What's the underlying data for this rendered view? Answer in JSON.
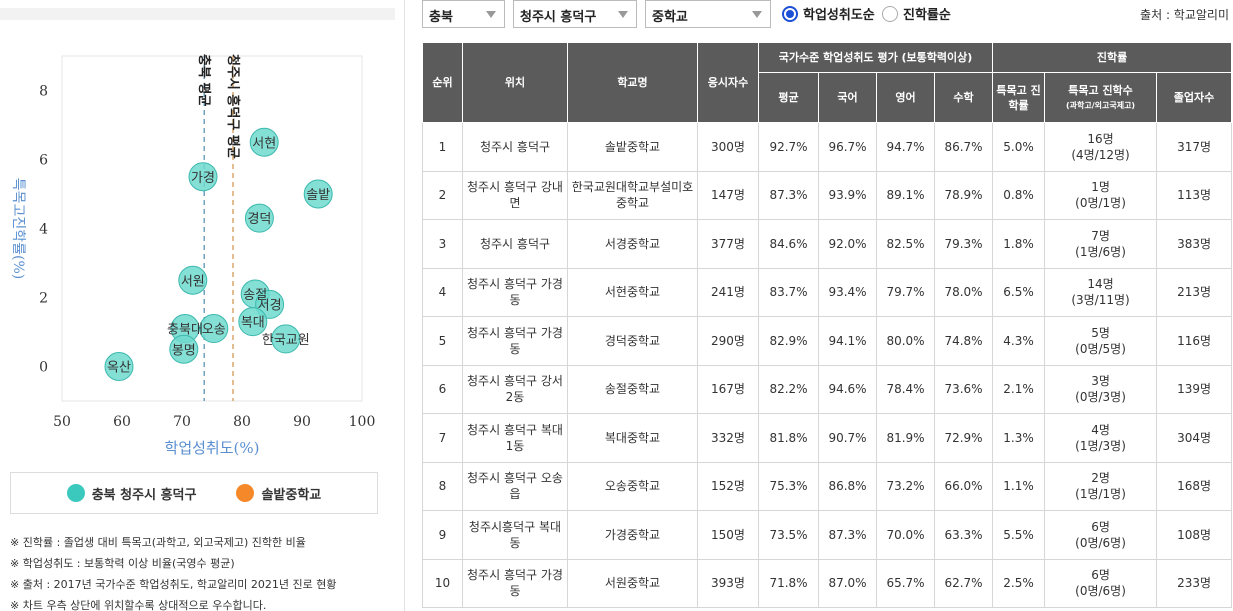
{
  "chart_data": {
    "type": "scatter",
    "xlabel": "학업성취도(%)",
    "ylabel": "특목고진학률(%)",
    "xlim": [
      50,
      100
    ],
    "ylim": [
      -1,
      9
    ],
    "xticks": [
      50,
      60,
      70,
      80,
      90,
      100
    ],
    "yticks": [
      0,
      2,
      4,
      6,
      8
    ],
    "grid": false,
    "legend_position": "bottom",
    "reference_lines": [
      {
        "label": "충북 평균",
        "x": 73.7
      },
      {
        "label": "청주시 흥덕구 평균",
        "x": 78.5
      }
    ],
    "series": [
      {
        "name": "충북 청주시 흥덕구",
        "color": "#3cc9bd",
        "points": [
          {
            "label": "서현",
            "x": 83.7,
            "y": 6.5
          },
          {
            "label": "솔밭",
            "x": 92.7,
            "y": 5.0
          },
          {
            "label": "가경",
            "x": 73.5,
            "y": 5.5
          },
          {
            "label": "경덕",
            "x": 82.9,
            "y": 4.3
          },
          {
            "label": "서원",
            "x": 71.8,
            "y": 2.5
          },
          {
            "label": "송절",
            "x": 82.2,
            "y": 2.1
          },
          {
            "label": "서경",
            "x": 84.6,
            "y": 1.8
          },
          {
            "label": "복대",
            "x": 81.8,
            "y": 1.3
          },
          {
            "label": "충북대",
            "x": 70.5,
            "y": 1.1
          },
          {
            "label": "오송",
            "x": 75.3,
            "y": 1.1
          },
          {
            "label": "한국교원",
            "x": 87.3,
            "y": 0.8
          },
          {
            "label": "봉명",
            "x": 70.3,
            "y": 0.5
          },
          {
            "label": "옥산",
            "x": 59.5,
            "y": 0.0
          }
        ]
      },
      {
        "name": "솔밭중학교",
        "color": "#f5892a",
        "points": []
      }
    ]
  },
  "notes": [
    "※ 진학률 : 졸업생 대비 특목고(과학고, 외고국제고) 진학한 비율",
    "※ 학업성취도 : 보통학력 이상 비율(국영수 평균)",
    "※ 출처 : 2017년 국가수준 학업성취도, 학교알리미 2021년 진로 현황",
    "※ 차트 우측 상단에 위치할수록 상대적으로 우수합니다."
  ],
  "filters": {
    "province": "충북",
    "district": "청주시 흥덕구",
    "school_type": "중학교",
    "sort_options": [
      "학업성취도순",
      "진학률순"
    ],
    "source": "출처 : 학교알리미"
  },
  "table": {
    "headers": {
      "rank": "순위",
      "location": "위치",
      "school": "학교명",
      "examinees": "응시자수",
      "group_achievement": "국가수준 학업성취도 평가 (보통학력이상)",
      "avg": "평균",
      "korean": "국어",
      "english": "영어",
      "math": "수학",
      "group_advance": "진학률",
      "special_rate": "특목고 진학률",
      "special_count": "특목고 진학수",
      "special_count_sub": "(과학고/외고국제고)",
      "graduates": "졸업자수"
    },
    "rows": [
      {
        "rank": "1",
        "location": "청주시 흥덕구",
        "school": "솔밭중학교",
        "examinees": "300명",
        "avg": "92.7%",
        "korean": "96.7%",
        "english": "94.7%",
        "math": "86.7%",
        "rate": "5.0%",
        "count": "16명",
        "count_detail": "(4명/12명)",
        "graduates": "317명"
      },
      {
        "rank": "2",
        "location": "청주시 흥덕구 강내면",
        "school": "한국교원대학교부설미호중학교",
        "examinees": "147명",
        "avg": "87.3%",
        "korean": "93.9%",
        "english": "89.1%",
        "math": "78.9%",
        "rate": "0.8%",
        "count": "1명",
        "count_detail": "(0명/1명)",
        "graduates": "113명"
      },
      {
        "rank": "3",
        "location": "청주시 흥덕구",
        "school": "서경중학교",
        "examinees": "377명",
        "avg": "84.6%",
        "korean": "92.0%",
        "english": "82.5%",
        "math": "79.3%",
        "rate": "1.8%",
        "count": "7명",
        "count_detail": "(1명/6명)",
        "graduates": "383명"
      },
      {
        "rank": "4",
        "location": "청주시 흥덕구 가경동",
        "school": "서현중학교",
        "examinees": "241명",
        "avg": "83.7%",
        "korean": "93.4%",
        "english": "79.7%",
        "math": "78.0%",
        "rate": "6.5%",
        "count": "14명",
        "count_detail": "(3명/11명)",
        "graduates": "213명"
      },
      {
        "rank": "5",
        "location": "청주시 흥덕구 가경동",
        "school": "경덕중학교",
        "examinees": "290명",
        "avg": "82.9%",
        "korean": "94.1%",
        "english": "80.0%",
        "math": "74.8%",
        "rate": "4.3%",
        "count": "5명",
        "count_detail": "(0명/5명)",
        "graduates": "116명"
      },
      {
        "rank": "6",
        "location": "청주시 흥덕구 강서2동",
        "school": "송절중학교",
        "examinees": "167명",
        "avg": "82.2%",
        "korean": "94.6%",
        "english": "78.4%",
        "math": "73.6%",
        "rate": "2.1%",
        "count": "3명",
        "count_detail": "(0명/3명)",
        "graduates": "139명"
      },
      {
        "rank": "7",
        "location": "청주시 흥덕구 복대1동",
        "school": "복대중학교",
        "examinees": "332명",
        "avg": "81.8%",
        "korean": "90.7%",
        "english": "81.9%",
        "math": "72.9%",
        "rate": "1.3%",
        "count": "4명",
        "count_detail": "(1명/3명)",
        "graduates": "304명"
      },
      {
        "rank": "8",
        "location": "청주시 흥덕구 오송읍",
        "school": "오송중학교",
        "examinees": "152명",
        "avg": "75.3%",
        "korean": "86.8%",
        "english": "73.2%",
        "math": "66.0%",
        "rate": "1.1%",
        "count": "2명",
        "count_detail": "(1명/1명)",
        "graduates": "168명"
      },
      {
        "rank": "9",
        "location": "청주시흥덕구 복대동",
        "school": "가경중학교",
        "examinees": "150명",
        "avg": "73.5%",
        "korean": "87.3%",
        "english": "70.0%",
        "math": "63.3%",
        "rate": "5.5%",
        "count": "6명",
        "count_detail": "(0명/6명)",
        "graduates": "108명"
      },
      {
        "rank": "10",
        "location": "청주시 흥덕구 가경동",
        "school": "서원중학교",
        "examinees": "393명",
        "avg": "71.8%",
        "korean": "87.0%",
        "english": "65.7%",
        "math": "62.7%",
        "rate": "2.5%",
        "count": "6명",
        "count_detail": "(0명/6명)",
        "graduates": "233명"
      }
    ]
  }
}
